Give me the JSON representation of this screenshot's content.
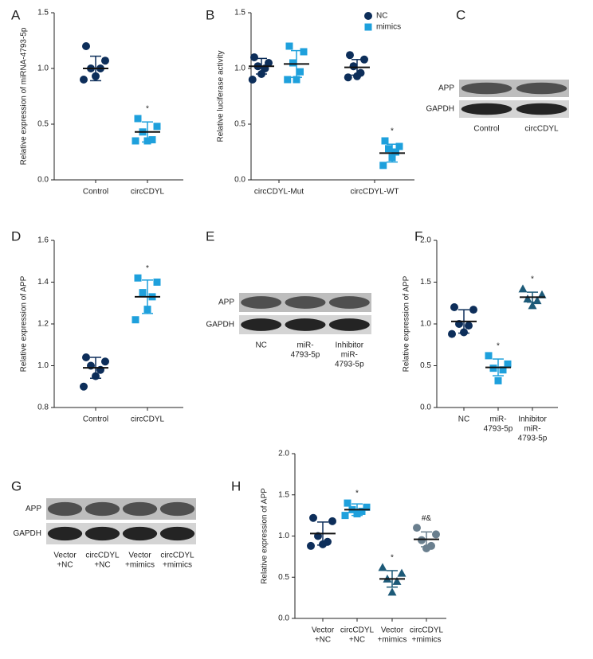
{
  "chart_data": [
    {
      "type": "dot",
      "panel": "A",
      "ylabel": "Relative expression of miRNA-4793-5p",
      "categories": [
        "Control",
        "circCDYL"
      ],
      "ylim": [
        0,
        1.5
      ],
      "yticks": [
        {
          "value": 0,
          "label": "0.0"
        },
        0.5,
        {
          "value": 1,
          "label": "1.0"
        },
        1.5
      ],
      "series": [
        {
          "color": [
            "#0d2e5a",
            "#1ea0dc"
          ],
          "marker": [
            "circle",
            "square"
          ],
          "points": [
            [
              1.2,
              1.07,
              1.0,
              1.0,
              0.93,
              0.9
            ],
            [
              0.55,
              0.48,
              0.43,
              0.36,
              0.35,
              0.35
            ]
          ],
          "mean": [
            1.0,
            0.43
          ],
          "sd": [
            0.11,
            0.09
          ],
          "labels": [
            null,
            "*"
          ]
        }
      ]
    },
    {
      "type": "dot",
      "panel": "B",
      "ylabel": "Relative luciferase activity",
      "categories": [
        "circCDYL-Mut",
        "circCDYL-WT"
      ],
      "ylim": [
        0,
        1.5
      ],
      "yticks": [
        {
          "value": 0,
          "label": "0.0"
        },
        0.5,
        {
          "value": 1,
          "label": "1.0"
        },
        1.5
      ],
      "series": [
        {
          "name": "NC",
          "color": "#0d2e5a",
          "marker": "circle",
          "points": [
            [
              1.1,
              1.05,
              1.02,
              1.0,
              0.95,
              0.9
            ],
            [
              1.12,
              1.08,
              1.02,
              0.96,
              0.93,
              0.92
            ]
          ],
          "mean": [
            1.02,
            1.01
          ],
          "sd": [
            0.07,
            0.07
          ],
          "labels": [
            null,
            null
          ]
        },
        {
          "name": "mimics",
          "color": "#1ea0dc",
          "marker": "square",
          "points": [
            [
              1.2,
              1.15,
              1.05,
              0.97,
              0.9,
              0.9
            ],
            [
              0.35,
              0.3,
              0.28,
              0.25,
              0.2,
              0.13
            ]
          ],
          "mean": [
            1.04,
            0.24
          ],
          "sd": [
            0.12,
            0.08
          ],
          "labels": [
            null,
            "*"
          ]
        }
      ]
    },
    {
      "type": "blot",
      "panel": "C",
      "rows": [
        "APP",
        "GAPDH"
      ],
      "lanes": [
        "Control",
        "circCDYL"
      ]
    },
    {
      "type": "dot",
      "panel": "D",
      "ylabel": "Relative expression of APP",
      "categories": [
        "Control",
        "circCDYL"
      ],
      "ylim": [
        0.8,
        1.6
      ],
      "yticks": [
        0.8,
        {
          "value": 1,
          "label": "1.0"
        },
        1.2,
        1.4,
        1.6
      ],
      "series": [
        {
          "color": [
            "#0d2e5a",
            "#1ea0dc"
          ],
          "marker": [
            "circle",
            "square"
          ],
          "points": [
            [
              1.04,
              1.02,
              1.0,
              0.98,
              0.95,
              0.9
            ],
            [
              1.42,
              1.4,
              1.35,
              1.33,
              1.27,
              1.22
            ]
          ],
          "mean": [
            0.99,
            1.33
          ],
          "sd": [
            0.05,
            0.08
          ],
          "labels": [
            null,
            "*"
          ]
        }
      ]
    },
    {
      "type": "blot",
      "panel": "E",
      "rows": [
        "APP",
        "GAPDH"
      ],
      "lanes": [
        "NC",
        [
          "miR-",
          "4793-5p"
        ],
        [
          "Inhibitor",
          "miR-",
          "4793-5p"
        ]
      ]
    },
    {
      "type": "dot",
      "panel": "F",
      "ylabel": "Relative expression of APP",
      "categories": [
        "NC",
        [
          "miR-",
          "4793-5p"
        ],
        [
          "Inhibitor",
          "miR-",
          "4793-5p"
        ]
      ],
      "ylim": [
        0,
        2
      ],
      "yticks": [
        {
          "value": 0,
          "label": "0.0"
        },
        0.5,
        {
          "value": 1,
          "label": "1.0"
        },
        1.5,
        {
          "value": 2,
          "label": "2.0"
        }
      ],
      "series": [
        {
          "color": [
            "#0d2e5a",
            "#1ea0dc",
            "#1d5a78"
          ],
          "marker": [
            "circle",
            "square",
            "triangle"
          ],
          "points": [
            [
              1.2,
              1.17,
              1.0,
              0.98,
              0.9,
              0.88
            ],
            [
              0.62,
              0.52,
              0.47,
              0.45,
              0.32
            ],
            [
              1.42,
              1.35,
              1.3,
              1.28,
              1.22
            ]
          ],
          "mean": [
            1.03,
            0.48,
            1.32
          ],
          "sd": [
            0.14,
            0.1,
            0.06
          ],
          "labels": [
            null,
            "*",
            "*"
          ]
        }
      ]
    },
    {
      "type": "blot",
      "panel": "G",
      "rows": [
        "APP",
        "GAPDH"
      ],
      "lanes": [
        [
          "Vector",
          "+NC"
        ],
        [
          "circCDYL",
          "+NC"
        ],
        [
          "Vector",
          "+mimics"
        ],
        [
          "circCDYL",
          "+mimics"
        ]
      ]
    },
    {
      "type": "dot",
      "panel": "H",
      "ylabel": "Relative expression of APP",
      "categories": [
        [
          "Vector",
          "+NC"
        ],
        [
          "circCDYL",
          "+NC"
        ],
        [
          "Vector",
          "+mimics"
        ],
        [
          "circCDYL",
          "+mimics"
        ]
      ],
      "ylim": [
        0,
        2
      ],
      "yticks": [
        {
          "value": 0,
          "label": "0.0"
        },
        0.5,
        {
          "value": 1,
          "label": "1.0"
        },
        1.5,
        {
          "value": 2,
          "label": "2.0"
        }
      ],
      "series": [
        {
          "color": [
            "#0d2e5a",
            "#1ea0dc",
            "#1d5a78",
            "#6a7f8e"
          ],
          "marker": [
            "circle",
            "square",
            "triangle",
            "circle"
          ],
          "points": [
            [
              1.22,
              1.18,
              1.0,
              0.93,
              0.9,
              0.88
            ],
            [
              1.4,
              1.35,
              1.32,
              1.3,
              1.27,
              1.25
            ],
            [
              0.62,
              0.55,
              0.48,
              0.45,
              0.32
            ],
            [
              1.1,
              1.02,
              0.95,
              0.88,
              0.85
            ]
          ],
          "mean": [
            1.03,
            1.32,
            0.48,
            0.96
          ],
          "sd": [
            0.14,
            0.07,
            0.1,
            0.09
          ],
          "labels": [
            null,
            "*",
            "*",
            "#&"
          ]
        }
      ]
    }
  ]
}
